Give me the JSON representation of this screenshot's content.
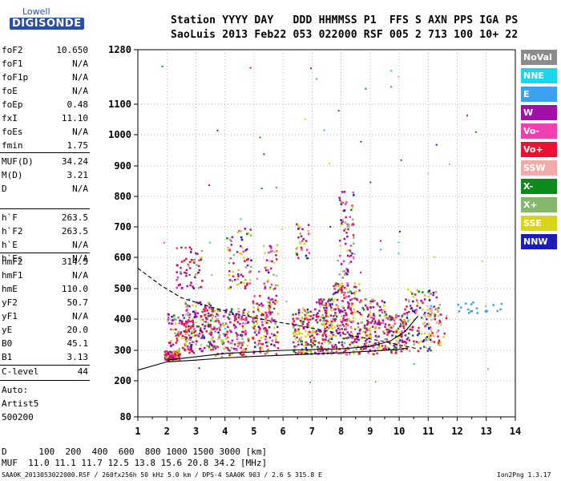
{
  "logo": {
    "line1": "Lowell",
    "line2": "DIGISONDE"
  },
  "header": {
    "row1": "Station YYYY DAY   DDD HHMMSS P1  FFS S AXN PPS IGA PS",
    "row2": "SaoLuis 2013 Feb22 053 022000 RSF 005 2 713 100 10+ 22"
  },
  "params": [
    {
      "name": "foF2",
      "value": "10.650"
    },
    {
      "name": "foF1",
      "value": "N/A"
    },
    {
      "name": "foF1p",
      "value": "N/A"
    },
    {
      "name": "foE",
      "value": "N/A"
    },
    {
      "name": "foEp",
      "value": "0.48"
    },
    {
      "name": "fxI",
      "value": "11.10"
    },
    {
      "name": "foEs",
      "value": "N/A"
    },
    {
      "name": "fmin",
      "value": "1.75"
    },
    {
      "name": "MUF(D)",
      "value": "34.24"
    },
    {
      "name": "M(D)",
      "value": "3.21"
    },
    {
      "name": "D",
      "value": "N/A"
    },
    {
      "name": "h`F",
      "value": "263.5"
    },
    {
      "name": "h`F2",
      "value": "263.5"
    },
    {
      "name": "h`E",
      "value": "N/A"
    },
    {
      "name": "h`Es",
      "value": "N/A"
    },
    {
      "name": "hmF2",
      "value": "314.5"
    },
    {
      "name": "hmF1",
      "value": "N/A"
    },
    {
      "name": "hmE",
      "value": "110.0"
    },
    {
      "name": "yF2",
      "value": "50.7"
    },
    {
      "name": "yF1",
      "value": "N/A"
    },
    {
      "name": "yE",
      "value": "20.0"
    },
    {
      "name": "B0",
      "value": "45.1"
    },
    {
      "name": "B1",
      "value": "3.13"
    },
    {
      "name": "C-level",
      "value": "44"
    }
  ],
  "auto": {
    "line1": "Auto:",
    "line2": "Artist5",
    "line3": "500200"
  },
  "legend": [
    {
      "label": "NoVal",
      "bg": "#8c8c8c",
      "fg": "#ffffff"
    },
    {
      "label": "NNE",
      "bg": "#19d5ee",
      "fg": "#ffffff"
    },
    {
      "label": "E",
      "bg": "#3aa2f0",
      "fg": "#ffffff"
    },
    {
      "label": "W",
      "bg": "#a010a8",
      "fg": "#ffffff"
    },
    {
      "label": "Vo-",
      "bg": "#f040b0",
      "fg": "#ffffff"
    },
    {
      "label": "Vo+",
      "bg": "#ee1034",
      "fg": "#ffffff"
    },
    {
      "label": "SSW",
      "bg": "#f2aaaa",
      "fg": "#ffffff"
    },
    {
      "label": "X-",
      "bg": "#0c8a1a",
      "fg": "#ffffff"
    },
    {
      "label": "X+",
      "bg": "#86b86c",
      "fg": "#ffffff"
    },
    {
      "label": "SSE",
      "bg": "#d8d418",
      "fg": "#ffffff"
    },
    {
      "label": "NNW",
      "bg": "#1c1cbc",
      "fg": "#ffffff"
    }
  ],
  "footer": {
    "d_row": "D      100  200  400  600  800 1000 1500 3000 [km]",
    "muf_row": "MUF  11.0 11.1 11.7 12.5 13.8 15.6 20.8 34.2 [MHz]",
    "file_info": "SAA0K_2013053022000.RSF / 260fx256h 50 kHz 5.0 km / DPS-4 SAA0K 903 / 2.6 S 315.8 E",
    "version": "Ion2Png 1.3.17"
  },
  "chart_data": {
    "type": "scatter",
    "x_ticks": [
      "1",
      "2",
      "3",
      "4",
      "5",
      "6",
      "7",
      "8",
      "9",
      "10",
      "11",
      "12",
      "13",
      "14"
    ],
    "y_ticks": [
      "80",
      "200",
      "300",
      "400",
      "500",
      "600",
      "700",
      "800",
      "900",
      "1000",
      "1100",
      "1280"
    ],
    "xlim": [
      1,
      14
    ],
    "ylim": [
      80,
      1280
    ],
    "x_scale": "linear (frequency, MHz)",
    "y_scale": "nonlinear (virtual height, km)",
    "grid": "dotted",
    "series": [
      {
        "kind": "trace",
        "style": "solid",
        "points": [
          [
            1,
            235
          ],
          [
            2,
            262
          ],
          [
            3,
            268
          ],
          [
            4,
            275
          ],
          [
            5,
            280
          ],
          [
            6,
            284
          ],
          [
            7,
            288
          ],
          [
            8,
            292
          ],
          [
            9,
            297
          ],
          [
            10,
            303
          ],
          [
            10.3,
            308
          ]
        ]
      },
      {
        "kind": "trace",
        "style": "solid",
        "points": [
          [
            2,
            268
          ],
          [
            4,
            290
          ],
          [
            6,
            300
          ],
          [
            8,
            305
          ],
          [
            9,
            312
          ],
          [
            9.7,
            330
          ],
          [
            10.2,
            360
          ],
          [
            10.65,
            410
          ]
        ]
      },
      {
        "kind": "trace",
        "style": "dashed",
        "points": [
          [
            1,
            565
          ],
          [
            1.8,
            510
          ],
          [
            2.5,
            470
          ],
          [
            3.5,
            440
          ],
          [
            4.5,
            415
          ],
          [
            5.5,
            395
          ],
          [
            6.5,
            380
          ],
          [
            7.5,
            362
          ],
          [
            8.5,
            345
          ],
          [
            9.5,
            328
          ],
          [
            10.1,
            315
          ],
          [
            10.65,
            305
          ]
        ]
      }
    ]
  }
}
